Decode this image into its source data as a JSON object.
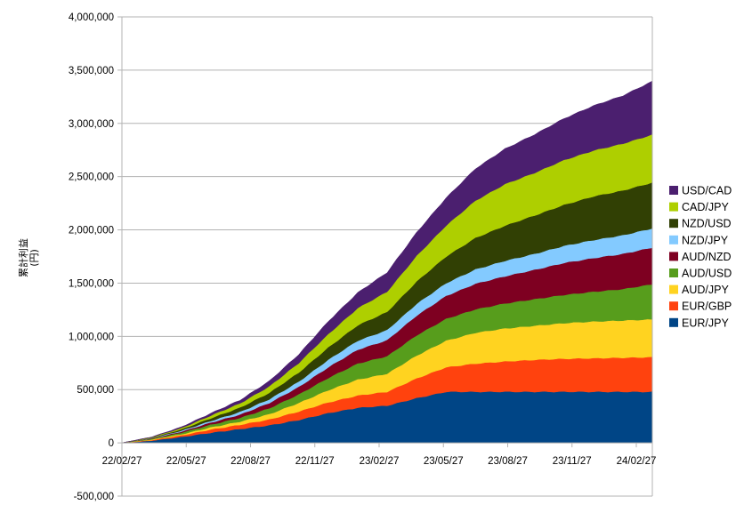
{
  "chart_data": {
    "type": "area",
    "stacked": true,
    "ylabel": "累計利益",
    "ylabel_unit": "(円)",
    "ylim": [
      -500000,
      4000000
    ],
    "yticks": [
      -500000,
      0,
      500000,
      1000000,
      1500000,
      2000000,
      2500000,
      3000000,
      3500000,
      4000000
    ],
    "ytick_labels": [
      "-500,000",
      "0",
      "500,000",
      "1,000,000",
      "1,500,000",
      "2,000,000",
      "2,500,000",
      "3,000,000",
      "3,500,000",
      "4,000,000"
    ],
    "xtick_labels": [
      "22/02/27",
      "22/05/27",
      "22/08/27",
      "22/11/27",
      "23/02/27",
      "23/05/27",
      "23/08/27",
      "23/11/27",
      "24/02/27"
    ],
    "x": [
      "22/02/27",
      "22/04/12",
      "22/05/27",
      "22/07/11",
      "22/08/27",
      "22/10/12",
      "22/11/27",
      "22/12/27",
      "23/01/27",
      "23/02/27",
      "23/04/12",
      "23/05/27",
      "23/07/11",
      "23/08/27",
      "23/10/12",
      "23/11/27",
      "24/01/12",
      "24/02/27",
      "24/04/15"
    ],
    "grid": true,
    "legend_position": "right",
    "series": [
      {
        "name": "EUR/JPY",
        "color": "#004586",
        "values": [
          0,
          20000,
          55000,
          95000,
          130000,
          165000,
          215000,
          280000,
          330000,
          350000,
          420000,
          480000,
          480000,
          480000,
          480000,
          480000,
          480000,
          480000,
          480000
        ]
      },
      {
        "name": "EUR/GBP",
        "color": "#ff420e",
        "values": [
          0,
          6000,
          15000,
          30000,
          40000,
          55000,
          80000,
          100000,
          115000,
          130000,
          185000,
          230000,
          265000,
          285000,
          300000,
          310000,
          315000,
          320000,
          325000
        ]
      },
      {
        "name": "AUD/JPY",
        "color": "#ffd320",
        "values": [
          0,
          5000,
          10000,
          20000,
          30000,
          50000,
          80000,
          115000,
          150000,
          170000,
          215000,
          250000,
          290000,
          310000,
          320000,
          335000,
          345000,
          350000,
          355000
        ]
      },
      {
        "name": "AUD/USD",
        "color": "#579d1c",
        "values": [
          0,
          6000,
          15000,
          25000,
          35000,
          55000,
          80000,
          115000,
          150000,
          165000,
          190000,
          205000,
          220000,
          235000,
          250000,
          265000,
          280000,
          295000,
          330000
        ]
      },
      {
        "name": "AUD/NZD",
        "color": "#7e0021",
        "values": [
          0,
          4000,
          10000,
          20000,
          30000,
          50000,
          70000,
          100000,
          130000,
          150000,
          185000,
          215000,
          240000,
          255000,
          275000,
          300000,
          315000,
          330000,
          345000
        ]
      },
      {
        "name": "NZD/JPY",
        "color": "#83caff",
        "values": [
          0,
          3000,
          8000,
          15000,
          25000,
          35000,
          50000,
          70000,
          85000,
          95000,
          110000,
          120000,
          135000,
          145000,
          150000,
          160000,
          170000,
          175000,
          180000
        ]
      },
      {
        "name": "NZD/USD",
        "color": "#314004",
        "values": [
          0,
          4000,
          12000,
          25000,
          40000,
          60000,
          85000,
          115000,
          145000,
          170000,
          210000,
          250000,
          295000,
          330000,
          360000,
          385000,
          410000,
          420000,
          430000
        ]
      },
      {
        "name": "CAD/JPY",
        "color": "#aecf00",
        "values": [
          0,
          4000,
          12000,
          25000,
          40000,
          60000,
          90000,
          125000,
          160000,
          190000,
          240000,
          290000,
          350000,
          390000,
          400000,
          420000,
          430000,
          440000,
          450000
        ]
      },
      {
        "name": "USD/CAD",
        "color": "#4b1f6f",
        "values": [
          0,
          3000,
          10000,
          20000,
          30000,
          50000,
          80000,
          120000,
          145000,
          180000,
          220000,
          260000,
          300000,
          330000,
          360000,
          390000,
          420000,
          450000,
          500000
        ]
      }
    ]
  }
}
